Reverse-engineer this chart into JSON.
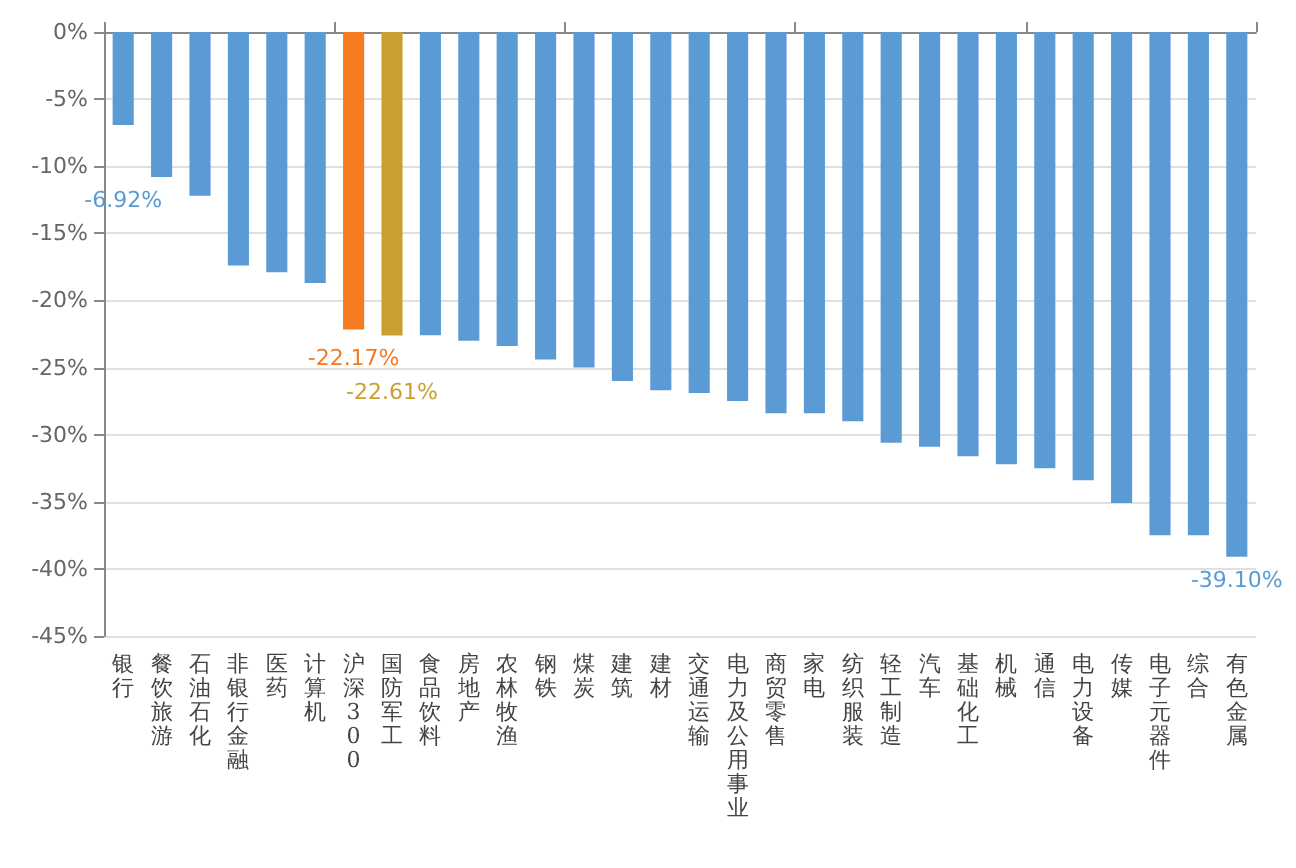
{
  "chart_data": {
    "type": "bar",
    "categories": [
      "银行",
      "餐饮旅游",
      "石油石化",
      "非银行金融",
      "医药",
      "计算机",
      "沪深300",
      "国防军工",
      "食品饮料",
      "房地产",
      "农林牧渔",
      "钢铁",
      "煤炭",
      "建筑",
      "建材",
      "交通运输",
      "电力及公用事业",
      "商贸零售",
      "家电",
      "纺织服装",
      "轻工制造",
      "汽车",
      "基础化工",
      "机械",
      "通信",
      "电力设备",
      "传媒",
      "电子元器件",
      "综合",
      "有色金属"
    ],
    "values": [
      -6.92,
      -10.8,
      -12.2,
      -17.4,
      -17.9,
      -18.7,
      -22.17,
      -22.61,
      -22.6,
      -23.0,
      -23.4,
      -24.4,
      -25.0,
      -26.0,
      -26.7,
      -26.9,
      -27.5,
      -28.4,
      -28.4,
      -29.0,
      -30.6,
      -30.9,
      -31.6,
      -32.2,
      -32.5,
      -33.4,
      -35.1,
      -37.5,
      -37.5,
      -39.1
    ],
    "colors": [
      "#5b9bd5",
      "#5b9bd5",
      "#5b9bd5",
      "#5b9bd5",
      "#5b9bd5",
      "#5b9bd5",
      "#f47b20",
      "#c8a032",
      "#5b9bd5",
      "#5b9bd5",
      "#5b9bd5",
      "#5b9bd5",
      "#5b9bd5",
      "#5b9bd5",
      "#5b9bd5",
      "#5b9bd5",
      "#5b9bd5",
      "#5b9bd5",
      "#5b9bd5",
      "#5b9bd5",
      "#5b9bd5",
      "#5b9bd5",
      "#5b9bd5",
      "#5b9bd5",
      "#5b9bd5",
      "#5b9bd5",
      "#5b9bd5",
      "#5b9bd5",
      "#5b9bd5",
      "#5b9bd5"
    ],
    "value_labels": [
      "-6.92%",
      null,
      null,
      null,
      null,
      null,
      "-22.17%",
      "-22.61%",
      null,
      null,
      null,
      null,
      null,
      null,
      null,
      null,
      null,
      null,
      null,
      null,
      null,
      null,
      null,
      null,
      null,
      null,
      null,
      null,
      null,
      "-39.10%"
    ],
    "ylim": [
      -45,
      0
    ],
    "yticks": [
      {
        "value": 0,
        "label": "0%"
      },
      {
        "value": -5,
        "label": "-5%"
      },
      {
        "value": -10,
        "label": "-10%"
      },
      {
        "value": -15,
        "label": "-15%"
      },
      {
        "value": -20,
        "label": "-20%"
      },
      {
        "value": -25,
        "label": "-25%"
      },
      {
        "value": -30,
        "label": "-30%"
      },
      {
        "value": -35,
        "label": "-35%"
      },
      {
        "value": -40,
        "label": "-40%"
      },
      {
        "value": -45,
        "label": "-45%"
      }
    ],
    "grid": "y"
  }
}
